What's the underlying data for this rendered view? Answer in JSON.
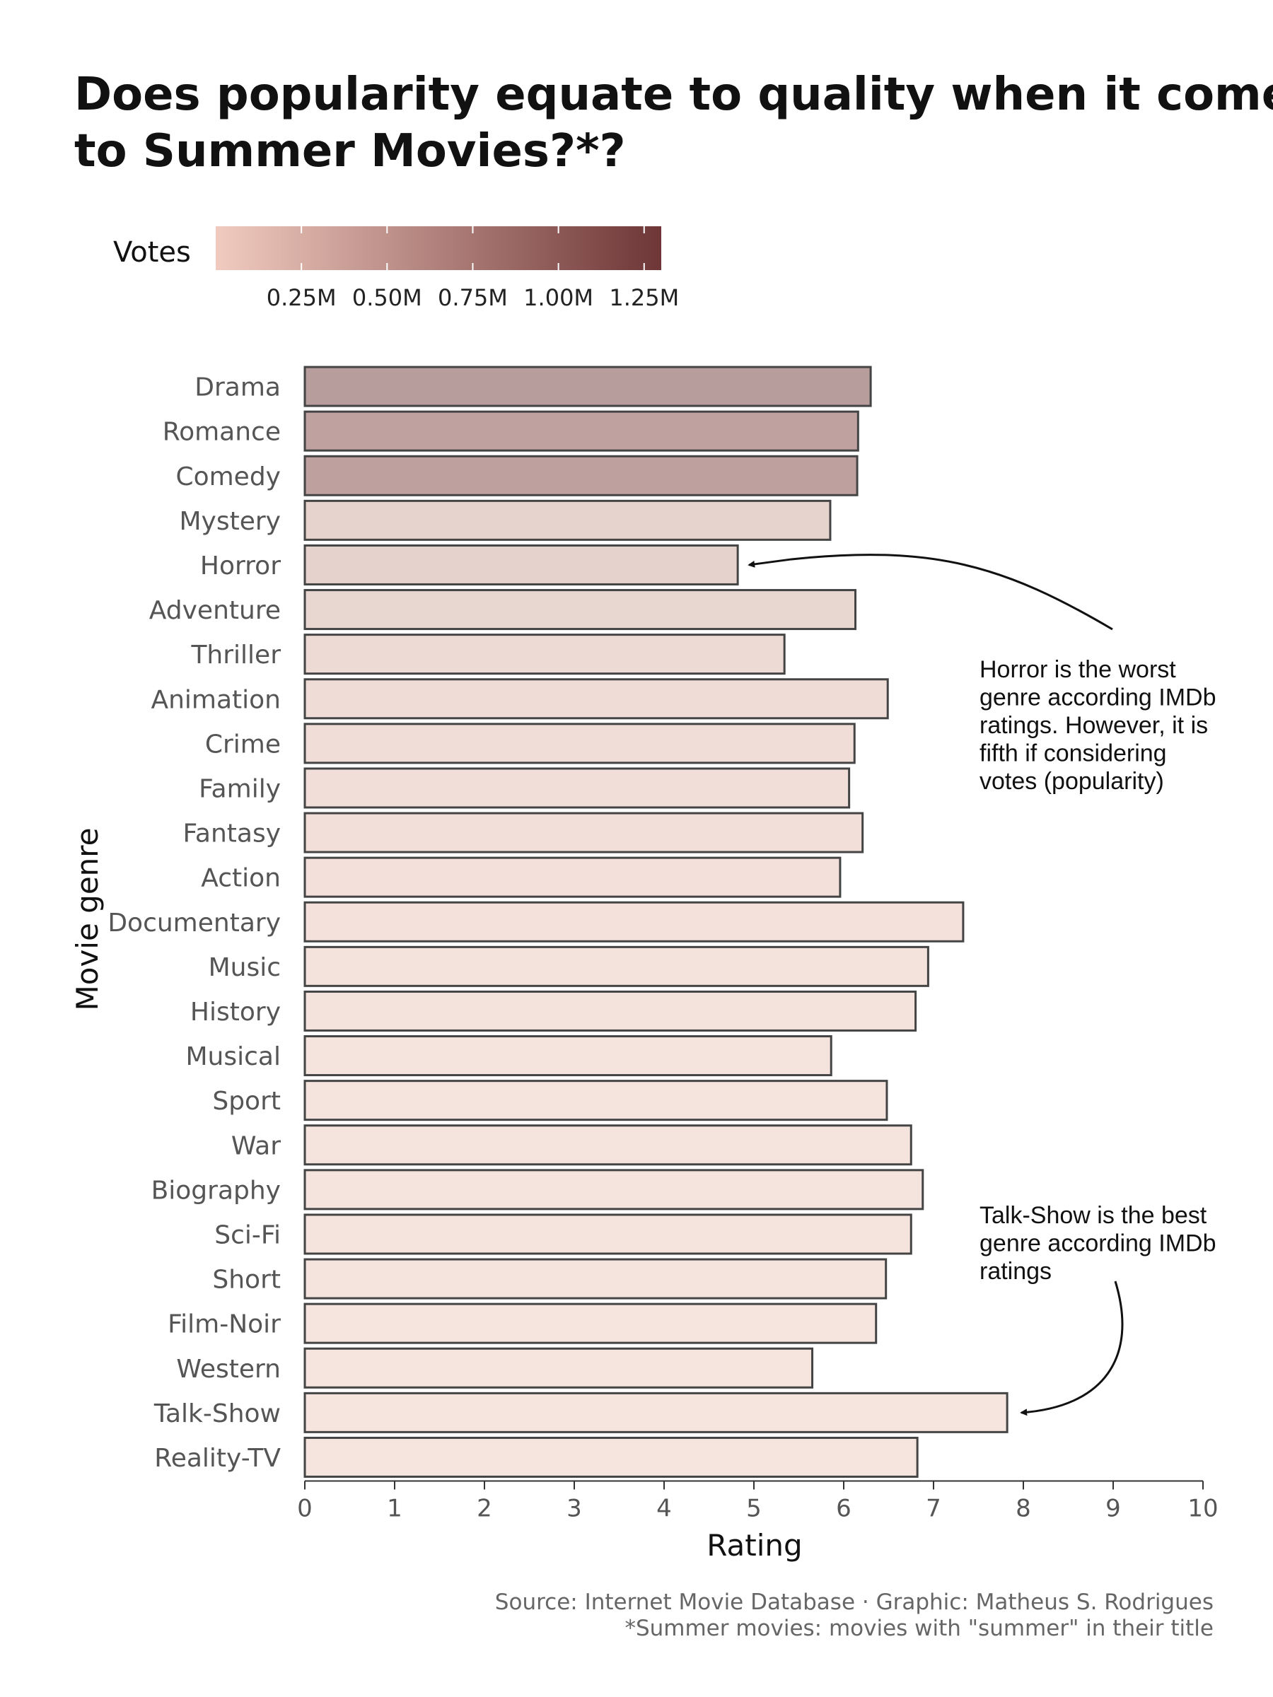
{
  "title_lines": [
    "Does popularity equate to quality when it comes",
    "to Summer Movies?*?"
  ],
  "legend": {
    "title": "Votes",
    "colors": [
      "#f1cbbf",
      "#6e3637"
    ],
    "ticks": [
      {
        "value": 0.25,
        "label": "0.25M"
      },
      {
        "value": 0.5,
        "label": "0.50M"
      },
      {
        "value": 0.75,
        "label": "0.75M"
      },
      {
        "value": 1.0,
        "label": "1.00M"
      },
      {
        "value": 1.25,
        "label": "1.25M"
      }
    ],
    "range": [
      0.0,
      1.3
    ]
  },
  "chart_data": {
    "type": "bar",
    "orientation": "horizontal",
    "xlabel": "Rating",
    "ylabel": "Movie genre",
    "xlim": [
      0,
      10
    ],
    "xticks": [
      0,
      1,
      2,
      3,
      4,
      5,
      6,
      7,
      8,
      9,
      10
    ],
    "categories": [
      "Drama",
      "Romance",
      "Comedy",
      "Mystery",
      "Horror",
      "Adventure",
      "Thriller",
      "Animation",
      "Crime",
      "Family",
      "Fantasy",
      "Action",
      "Documentary",
      "Music",
      "History",
      "Musical",
      "Sport",
      "War",
      "Biography",
      "Sci-Fi",
      "Short",
      "Film-Noir",
      "Western",
      "Talk-Show",
      "Reality-TV"
    ],
    "values": [
      6.3,
      6.16,
      6.15,
      5.85,
      4.82,
      6.13,
      5.34,
      6.49,
      6.12,
      6.06,
      6.21,
      5.96,
      7.33,
      6.94,
      6.8,
      5.86,
      6.48,
      6.75,
      6.88,
      6.75,
      6.47,
      6.36,
      5.65,
      7.82,
      6.82
    ],
    "votes_millions": [
      1.18,
      1.05,
      1.06,
      0.35,
      0.3,
      0.28,
      0.2,
      0.16,
      0.15,
      0.12,
      0.12,
      0.11,
      0.08,
      0.07,
      0.07,
      0.06,
      0.06,
      0.05,
      0.05,
      0.05,
      0.05,
      0.04,
      0.04,
      0.04,
      0.04
    ],
    "fill_colors": [
      "#b89d9d",
      "#bfa2a0",
      "#bea19f",
      "#e7d3cd",
      "#e6d2cc",
      "#e8d6d0",
      "#eddad4",
      "#f0dcd6",
      "#f0ddd7",
      "#f1ded8",
      "#f2dfd9",
      "#f3e0da",
      "#f4e1db",
      "#f4e2dc",
      "#f4e2dc",
      "#f5e3dd",
      "#f5e3dd",
      "#f5e3dd",
      "#f5e3dd",
      "#f5e3dd",
      "#f5e3dd",
      "#f6e4de",
      "#f6e4de",
      "#f6e4de",
      "#f6e4de"
    ],
    "annotations": [
      {
        "lines": [
          "Horror is the worst",
          "genre according IMDb",
          "ratings. However, it is",
          "fifth if considering",
          "votes (popularity)"
        ],
        "target": "Horror"
      },
      {
        "lines": [
          "Talk-Show is the best",
          "genre according IMDb",
          "ratings"
        ],
        "target": "Talk-Show"
      }
    ]
  },
  "caption_lines": [
    "Source: Internet Movie Database · Graphic: Matheus S. Rodrigues",
    "*Summer movies: movies with \"summer\" in their title"
  ]
}
